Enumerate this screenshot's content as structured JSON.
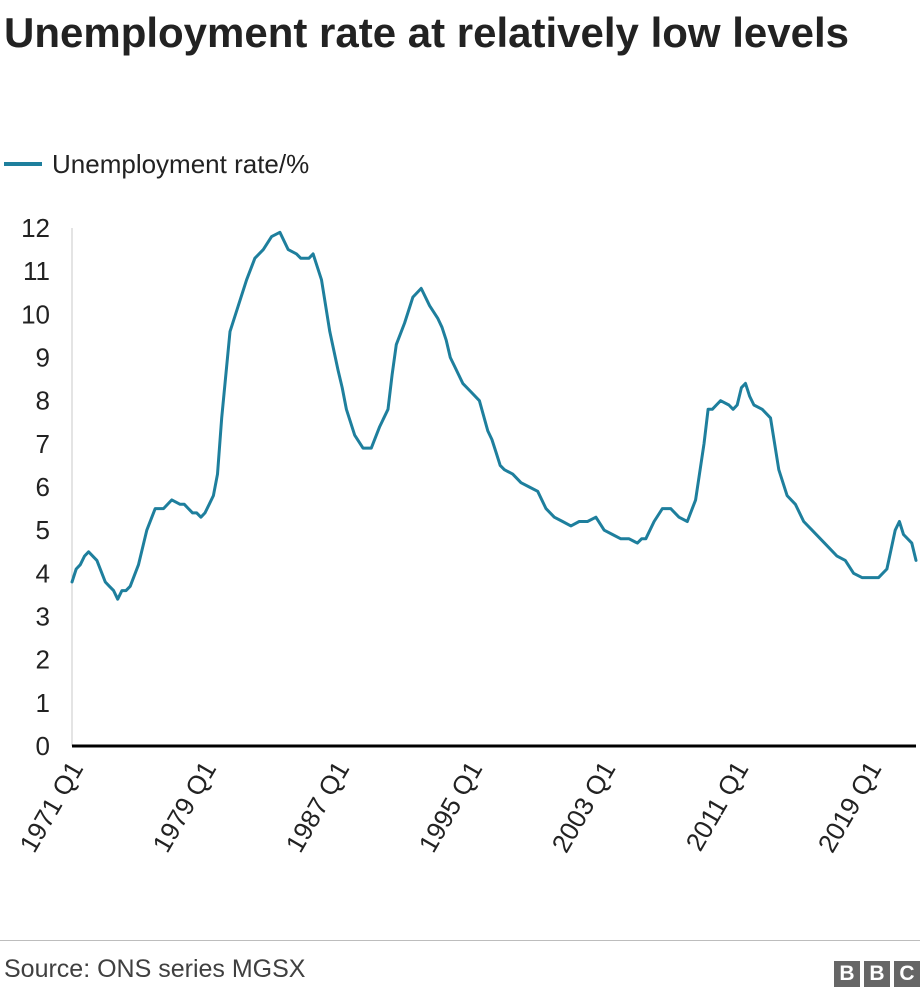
{
  "colors": {
    "series": "#1e7f9d",
    "axis": "#000000",
    "text": "#222222",
    "logo": "#666666"
  },
  "source": "Source: ONS series MGSX",
  "logo": [
    "B",
    "B",
    "C"
  ],
  "chart_data": {
    "type": "line",
    "title": "Unemployment rate at relatively low levels",
    "xlabel": "",
    "ylabel": "",
    "ylim": [
      0,
      12
    ],
    "yticks": [
      "0",
      "1",
      "2",
      "3",
      "4",
      "5",
      "6",
      "7",
      "8",
      "9",
      "10",
      "11",
      "12"
    ],
    "xticks": [
      "1971 Q1",
      "1979 Q1",
      "1987 Q1",
      "1995 Q1",
      "2003 Q1",
      "2011 Q1",
      "2019 Q1"
    ],
    "grid": false,
    "legend": "top-left",
    "series": [
      {
        "name": "Unemployment rate/%",
        "x": [
          1971.0,
          1971.25,
          1971.5,
          1971.75,
          1972.0,
          1972.5,
          1973.0,
          1973.25,
          1973.5,
          1973.75,
          1974.0,
          1974.25,
          1974.5,
          1975.0,
          1975.5,
          1976.0,
          1976.5,
          1977.0,
          1977.5,
          1977.75,
          1978.0,
          1978.25,
          1978.5,
          1978.75,
          1979.0,
          1979.25,
          1979.5,
          1979.75,
          1980.0,
          1980.5,
          1981.0,
          1981.5,
          1982.0,
          1982.5,
          1983.0,
          1983.5,
          1984.0,
          1984.5,
          1984.75,
          1985.0,
          1985.25,
          1985.5,
          1986.0,
          1986.5,
          1987.0,
          1987.25,
          1987.5,
          1988.0,
          1988.5,
          1989.0,
          1989.5,
          1990.0,
          1990.25,
          1990.5,
          1991.0,
          1991.5,
          1992.0,
          1992.5,
          1993.0,
          1993.25,
          1993.5,
          1993.75,
          1994.0,
          1994.5,
          1995.0,
          1995.5,
          1996.0,
          1996.25,
          1996.5,
          1996.75,
          1997.0,
          1997.5,
          1998.0,
          1998.5,
          1999.0,
          1999.5,
          2000.0,
          2000.5,
          2001.0,
          2001.5,
          2002.0,
          2002.5,
          2003.0,
          2003.5,
          2004.0,
          2004.5,
          2005.0,
          2005.25,
          2005.5,
          2006.0,
          2006.5,
          2007.0,
          2007.5,
          2008.0,
          2008.5,
          2009.0,
          2009.25,
          2009.5,
          2009.75,
          2010.0,
          2010.5,
          2010.75,
          2011.0,
          2011.25,
          2011.5,
          2011.75,
          2012.0,
          2012.5,
          2013.0,
          2013.5,
          2014.0,
          2014.5,
          2015.0,
          2015.5,
          2016.0,
          2016.5,
          2017.0,
          2017.5,
          2018.0,
          2018.5,
          2019.0,
          2019.5,
          2020.0,
          2020.5,
          2020.75,
          2021.0,
          2021.5,
          2021.75
        ],
        "values": [
          3.8,
          4.1,
          4.2,
          4.4,
          4.5,
          4.3,
          3.8,
          3.7,
          3.6,
          3.4,
          3.6,
          3.6,
          3.7,
          4.2,
          5.0,
          5.5,
          5.5,
          5.7,
          5.6,
          5.6,
          5.5,
          5.4,
          5.4,
          5.3,
          5.4,
          5.6,
          5.8,
          6.3,
          7.6,
          9.6,
          10.2,
          10.8,
          11.3,
          11.5,
          11.8,
          11.9,
          11.5,
          11.4,
          11.3,
          11.3,
          11.3,
          11.4,
          10.8,
          9.6,
          8.7,
          8.3,
          7.8,
          7.2,
          6.9,
          6.9,
          7.4,
          7.8,
          8.6,
          9.3,
          9.8,
          10.4,
          10.6,
          10.2,
          9.9,
          9.7,
          9.4,
          9.0,
          8.8,
          8.4,
          8.2,
          8.0,
          7.3,
          7.1,
          6.8,
          6.5,
          6.4,
          6.3,
          6.1,
          6.0,
          5.9,
          5.5,
          5.3,
          5.2,
          5.1,
          5.2,
          5.2,
          5.3,
          5.0,
          4.9,
          4.8,
          4.8,
          4.7,
          4.8,
          4.8,
          5.2,
          5.5,
          5.5,
          5.3,
          5.2,
          5.7,
          7.0,
          7.8,
          7.8,
          7.9,
          8.0,
          7.9,
          7.8,
          7.9,
          8.3,
          8.4,
          8.1,
          7.9,
          7.8,
          7.6,
          6.4,
          5.8,
          5.6,
          5.2,
          5.0,
          4.8,
          4.6,
          4.4,
          4.3,
          4.0,
          3.9,
          3.9,
          3.9,
          4.1,
          5.0,
          5.2,
          4.9,
          4.7,
          4.3
        ]
      }
    ]
  }
}
